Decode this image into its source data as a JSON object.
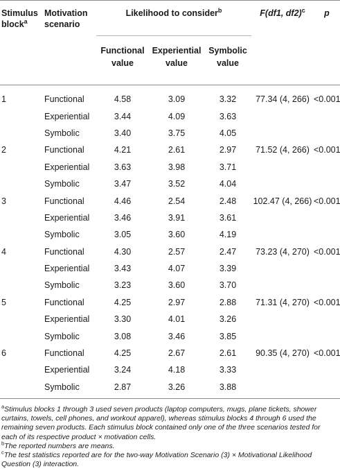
{
  "headers": {
    "stimulus_block": "Stimulus block",
    "stimulus_block_sup": "a",
    "motivation_scenario": "Motivation scenario",
    "likelihood": "Likelihood to consider",
    "likelihood_sup": "b",
    "f_stat": "F(df1, df2)",
    "f_stat_sup": "c",
    "p": "p",
    "functional_value": "Functional value",
    "experiential_value": "Experiential value",
    "symbolic_value": "Symbolic value"
  },
  "rows": [
    {
      "block": "1",
      "scenario": "Functional",
      "functional": "4.58",
      "experiential": "3.09",
      "symbolic": "3.32",
      "stat": "77.34 (4, 266)",
      "p": "<0.001"
    },
    {
      "block": "",
      "scenario": "Experiential",
      "functional": "3.44",
      "experiential": "4.09",
      "symbolic": "3.63",
      "stat": "",
      "p": ""
    },
    {
      "block": "",
      "scenario": "Symbolic",
      "functional": "3.40",
      "experiential": "3.75",
      "symbolic": "4.05",
      "stat": "",
      "p": ""
    },
    {
      "block": "2",
      "scenario": "Functional",
      "functional": "4.21",
      "experiential": "2.61",
      "symbolic": "2.97",
      "stat": "71.52 (4, 266)",
      "p": "<0.001"
    },
    {
      "block": "",
      "scenario": "Experiential",
      "functional": "3.63",
      "experiential": "3.98",
      "symbolic": "3.71",
      "stat": "",
      "p": ""
    },
    {
      "block": "",
      "scenario": "Symbolic",
      "functional": "3.47",
      "experiential": "3.52",
      "symbolic": "4.04",
      "stat": "",
      "p": ""
    },
    {
      "block": "3",
      "scenario": "Functional",
      "functional": "4.46",
      "experiential": "2.54",
      "symbolic": "2.48",
      "stat": "102.47 (4, 266)",
      "p": "<0.001"
    },
    {
      "block": "",
      "scenario": "Experiential",
      "functional": "3.46",
      "experiential": "3.91",
      "symbolic": "3.61",
      "stat": "",
      "p": ""
    },
    {
      "block": "",
      "scenario": "Symbolic",
      "functional": "3.05",
      "experiential": "3.60",
      "symbolic": "4.19",
      "stat": "",
      "p": ""
    },
    {
      "block": "4",
      "scenario": "Functional",
      "functional": "4.30",
      "experiential": "2.57",
      "symbolic": "2.47",
      "stat": "73.23 (4, 270)",
      "p": "<0.001"
    },
    {
      "block": "",
      "scenario": "Experiential",
      "functional": "3.43",
      "experiential": "4.07",
      "symbolic": "3.39",
      "stat": "",
      "p": ""
    },
    {
      "block": "",
      "scenario": "Symbolic",
      "functional": "3.23",
      "experiential": "3.60",
      "symbolic": "3.70",
      "stat": "",
      "p": ""
    },
    {
      "block": "5",
      "scenario": "Functional",
      "functional": "4.25",
      "experiential": "2.97",
      "symbolic": "2.88",
      "stat": "71.31 (4, 270)",
      "p": "<0.001"
    },
    {
      "block": "",
      "scenario": "Experiential",
      "functional": "3.30",
      "experiential": "4.01",
      "symbolic": "3.26",
      "stat": "",
      "p": ""
    },
    {
      "block": "",
      "scenario": "Symbolic",
      "functional": "3.08",
      "experiential": "3.46",
      "symbolic": "3.85",
      "stat": "",
      "p": ""
    },
    {
      "block": "6",
      "scenario": "Functional",
      "functional": "4.25",
      "experiential": "2.67",
      "symbolic": "2.61",
      "stat": "90.35 (4, 270)",
      "p": "<0.001"
    },
    {
      "block": "",
      "scenario": "Experiential",
      "functional": "3.24",
      "experiential": "4.18",
      "symbolic": "3.33",
      "stat": "",
      "p": ""
    },
    {
      "block": "",
      "scenario": "Symbolic",
      "functional": "2.87",
      "experiential": "3.26",
      "symbolic": "3.88",
      "stat": "",
      "p": ""
    }
  ],
  "notes": {
    "a_sup": "a",
    "a": "Stimulus blocks 1 through 3 used seven products (laptop computers, mugs, plane tickets, shower curtains, towels, cell phones, and workout apparel), whereas stimulus blocks 4 through 6 used the remaining seven products. Each stimulus block contained only one of the three scenarios tested for each of its respective product × motivation cells.",
    "b_sup": "b",
    "b": "The reported numbers are means.",
    "c_sup": "c",
    "c": "The test statistics reported are for the two-way Motivation Scenario (3) × Motivational Likelihood Question (3) interaction."
  }
}
